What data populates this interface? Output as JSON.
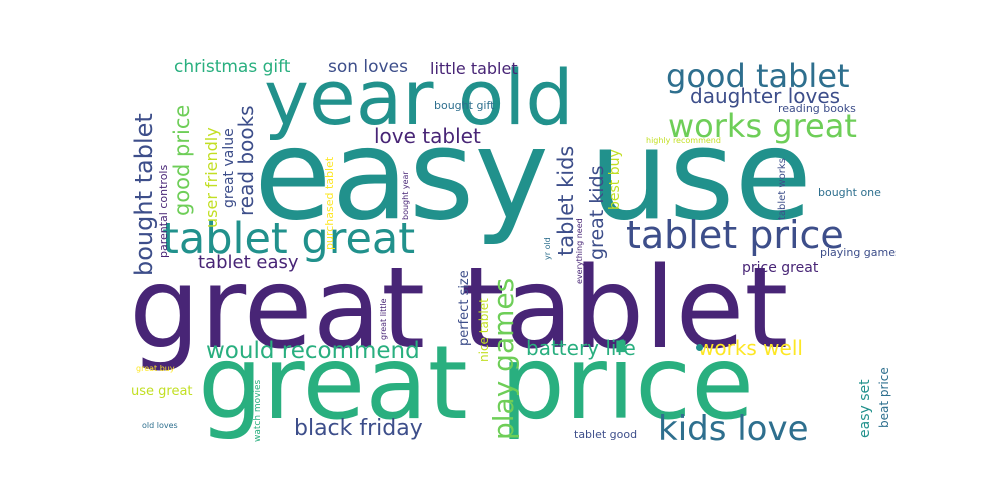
{
  "palette": {
    "purple": "#482576",
    "indigo": "#3d4e8a",
    "blue": "#2e6f8e",
    "teal": "#21918c",
    "green": "#29af7f",
    "lime": "#6ece58",
    "yellow": "#c2df23",
    "gold": "#fde725"
  },
  "words": {
    "easy_use": "easy use",
    "great_tablet": "great tablet",
    "great_price": "great price",
    "year_old": "year old",
    "tablet_great": "tablet great",
    "tablet_price": "tablet price",
    "kids_love": "kids love",
    "good_tablet": "good tablet",
    "works_great": "works great",
    "daughter_loves": "daughter loves",
    "would_recommend": "would recommend",
    "black_friday": "black friday",
    "play_games": "play games",
    "battery_life": "battery life",
    "works_well": "works well",
    "bought_tablet": "bought tablet",
    "good_price": "good price",
    "love_tablet": "love tablet",
    "christmas_gift": "christmas gift",
    "son_loves": "son loves",
    "little_tablet": "little tablet",
    "tablet_easy": "tablet easy",
    "read_books": "read books",
    "tablet_kids": "tablet kids",
    "great_kids": "great kids",
    "user_friendly": "user friendly",
    "great_value": "great value",
    "best_buy": "best buy",
    "price_great": "price great",
    "easy_set": "easy set",
    "beat_price": "beat price",
    "perfect_size": "perfect size",
    "nice_tablet": "nice tablet",
    "parental_controls": "parental controls",
    "purchased_tablet": "purchased tablet",
    "playing_games": "playing games",
    "bought_one": "bought one",
    "tablet_works": "tablet works",
    "reading_books": "reading books",
    "bought_gift": "bought gift",
    "use_great": "use great",
    "tablet_good": "tablet good",
    "highly_recommend": "highly recommend",
    "bought_year": "bought year",
    "great_little": "great little",
    "yr_old": "yr old",
    "everything_need": "everything need",
    "watch_movies": "watch movies",
    "great_buy": "great buy",
    "old_loves": "old loves"
  }
}
